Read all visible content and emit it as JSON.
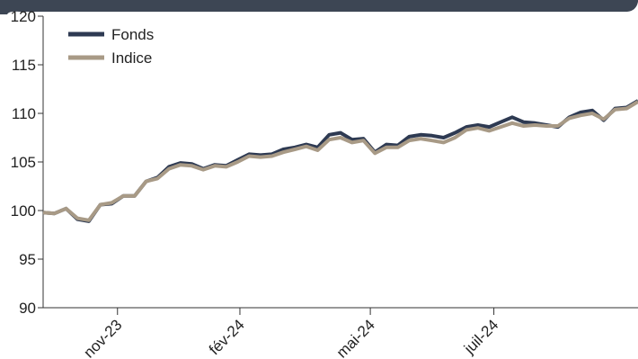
{
  "colors": {
    "fonds": "#2e3a52",
    "indice": "#a89a86",
    "header": "#3d4654",
    "axis": "#333333"
  },
  "chart_data": {
    "type": "line",
    "title": "",
    "xlabel": "",
    "ylabel": "",
    "ylim": [
      90,
      120
    ],
    "yticks": [
      "90",
      "95",
      "100",
      "105",
      "110",
      "115",
      "120"
    ],
    "xtick_labels": [
      "nov-23",
      "fév-24",
      "mai-24",
      "juil-24"
    ],
    "grid": false,
    "legend_position": "top-left",
    "series": [
      {
        "name": "Fonds",
        "values": [
          99.8,
          99.7,
          100.2,
          99.1,
          98.9,
          100.6,
          100.7,
          101.5,
          101.5,
          103.0,
          103.4,
          104.5,
          104.9,
          104.8,
          104.3,
          104.7,
          104.6,
          105.2,
          105.8,
          105.7,
          105.8,
          106.3,
          106.5,
          106.8,
          106.5,
          107.8,
          108.0,
          107.3,
          107.4,
          106.0,
          106.8,
          106.7,
          107.6,
          107.8,
          107.7,
          107.5,
          108.0,
          108.6,
          108.8,
          108.6,
          109.1,
          109.6,
          109.1,
          109.0,
          108.8,
          108.6,
          109.6,
          110.1,
          110.3,
          109.3,
          110.5,
          110.6,
          111.3
        ]
      },
      {
        "name": "Indice",
        "values": [
          99.8,
          99.7,
          100.2,
          99.2,
          99.0,
          100.6,
          100.8,
          101.5,
          101.5,
          103.0,
          103.3,
          104.3,
          104.7,
          104.6,
          104.2,
          104.6,
          104.5,
          105.0,
          105.6,
          105.5,
          105.6,
          106.0,
          106.3,
          106.6,
          106.2,
          107.3,
          107.5,
          107.0,
          107.2,
          105.9,
          106.5,
          106.5,
          107.2,
          107.4,
          107.2,
          107.0,
          107.5,
          108.3,
          108.5,
          108.2,
          108.6,
          109.0,
          108.7,
          108.8,
          108.7,
          108.7,
          109.5,
          109.8,
          110.0,
          109.4,
          110.4,
          110.5,
          111.2
        ]
      }
    ]
  }
}
